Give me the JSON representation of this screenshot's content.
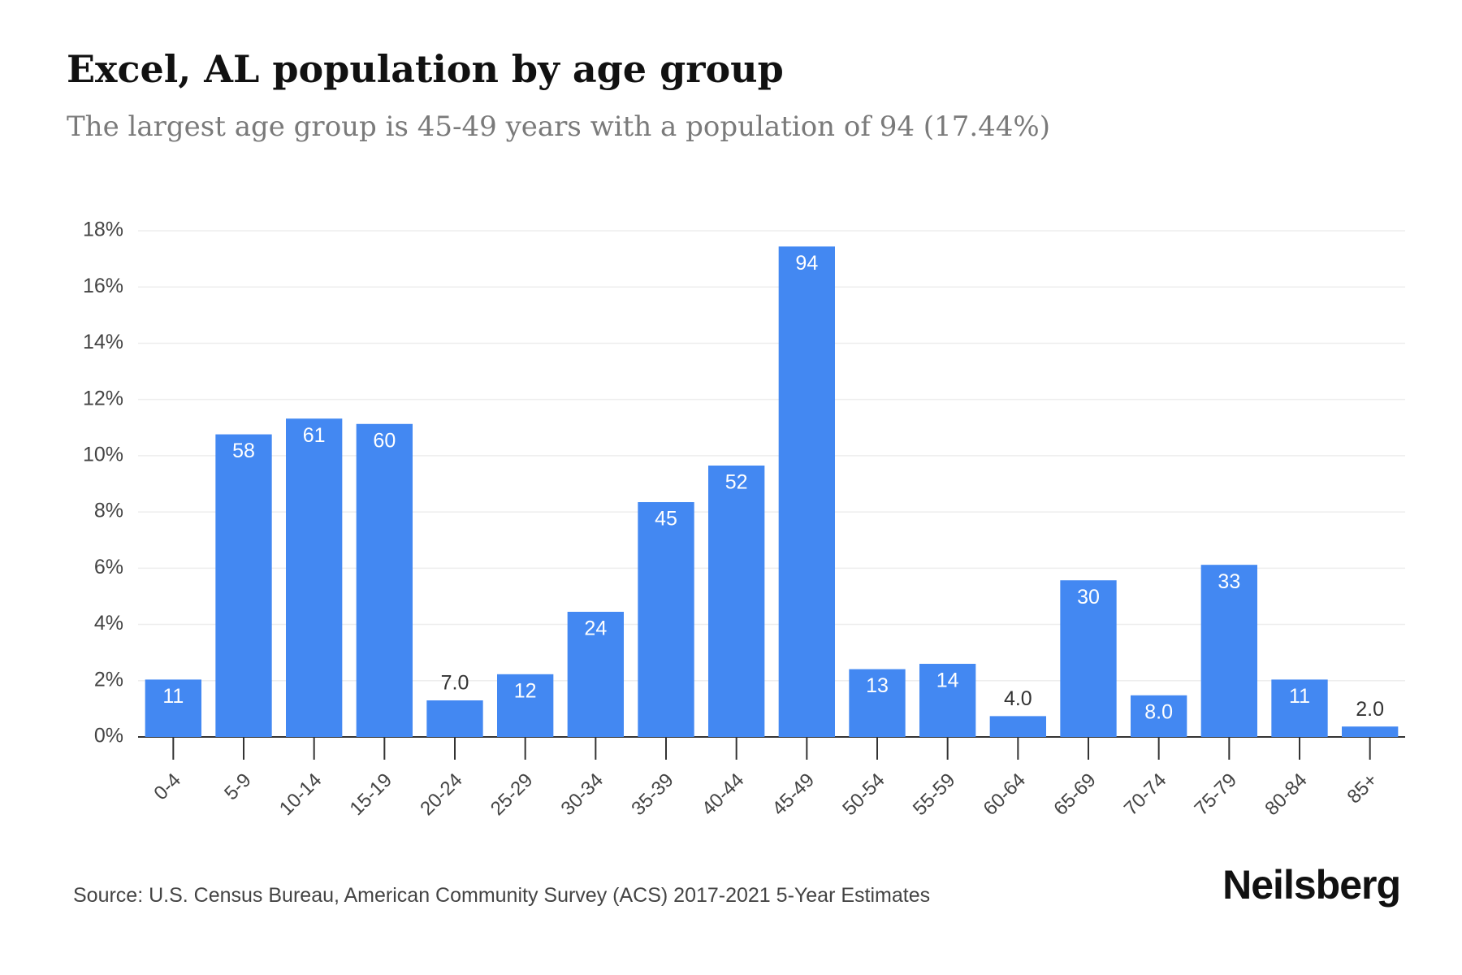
{
  "header": {
    "title": "Excel, AL population by age group",
    "subtitle": "The largest age group is 45-49 years with a population of 94 (17.44%)"
  },
  "footer": {
    "source": "Source: U.S. Census Bureau, American Community Survey (ACS) 2017-2021 5-Year Estimates",
    "brand": "Neilsberg"
  },
  "colors": {
    "bar": "#4388F2",
    "bar_label_inside": "#ffffff",
    "bar_label_outside": "#333333",
    "grid": "#eeeeee",
    "axis": "#333333",
    "tick_label": "#444444"
  },
  "chart_data": {
    "type": "bar",
    "title": "Excel, AL population by age group",
    "categories": [
      "0-4",
      "5-9",
      "10-14",
      "15-19",
      "20-24",
      "25-29",
      "30-34",
      "35-39",
      "40-44",
      "45-49",
      "50-54",
      "55-59",
      "60-64",
      "65-69",
      "70-74",
      "75-79",
      "80-84",
      "85+"
    ],
    "values": [
      2.04,
      10.76,
      11.32,
      11.13,
      1.3,
      2.23,
      4.45,
      8.35,
      9.65,
      17.44,
      2.41,
      2.6,
      0.74,
      5.57,
      1.48,
      6.12,
      2.04,
      0.37
    ],
    "data_labels": [
      "11",
      "58",
      "61",
      "60",
      "7.0",
      "12",
      "24",
      "45",
      "52",
      "94",
      "13",
      "14",
      "4.0",
      "30",
      "8.0",
      "33",
      "11",
      "2.0"
    ],
    "ylim": [
      0,
      18
    ],
    "yticks": [
      0,
      2,
      4,
      6,
      8,
      10,
      12,
      14,
      16,
      18
    ],
    "ytick_labels": [
      "0%",
      "2%",
      "4%",
      "6%",
      "8%",
      "10%",
      "12%",
      "14%",
      "16%",
      "18%"
    ],
    "xlabel": "",
    "ylabel": "",
    "grid": true,
    "legend": "none"
  }
}
